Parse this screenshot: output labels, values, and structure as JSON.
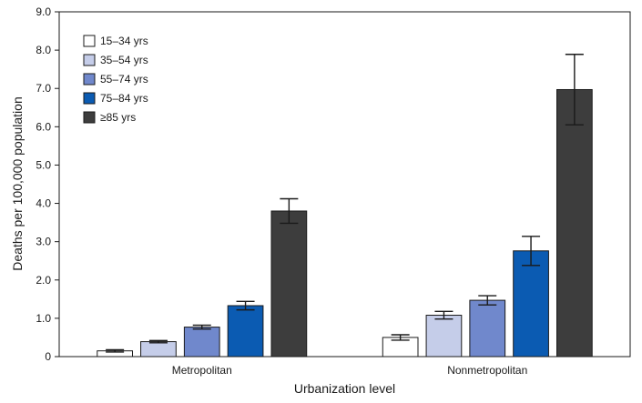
{
  "chart_data": {
    "type": "bar",
    "title": "",
    "xlabel": "Urbanization level",
    "ylabel": "Deaths per 100,000 population",
    "ylim": [
      0,
      9
    ],
    "y_ticks": [
      "0",
      "1.0",
      "2.0",
      "3.0",
      "4.0",
      "5.0",
      "6.0",
      "7.0",
      "8.0",
      "9.0"
    ],
    "categories": [
      "Metropolitan",
      "Nonmetropolitan"
    ],
    "legend_position": "top-left",
    "series": [
      {
        "name": "15–34 yrs",
        "color": "#ffffff",
        "values": [
          0.15,
          0.5
        ],
        "ci_low": [
          0.12,
          0.43
        ],
        "ci_high": [
          0.18,
          0.57
        ]
      },
      {
        "name": "35–54 yrs",
        "color": "#c5cde9",
        "values": [
          0.39,
          1.08
        ],
        "ci_low": [
          0.36,
          0.98
        ],
        "ci_high": [
          0.42,
          1.18
        ]
      },
      {
        "name": "55–74 yrs",
        "color": "#7088cc",
        "values": [
          0.77,
          1.47
        ],
        "ci_low": [
          0.72,
          1.35
        ],
        "ci_high": [
          0.82,
          1.59
        ]
      },
      {
        "name": "75–84 yrs",
        "color": "#0b5bb2",
        "values": [
          1.33,
          2.76
        ],
        "ci_low": [
          1.22,
          2.38
        ],
        "ci_high": [
          1.44,
          3.14
        ]
      },
      {
        "name": "≥85 yrs",
        "color": "#3d3d3d",
        "values": [
          3.8,
          6.97
        ],
        "ci_low": [
          3.48,
          6.05
        ],
        "ci_high": [
          4.12,
          7.89
        ]
      }
    ]
  }
}
